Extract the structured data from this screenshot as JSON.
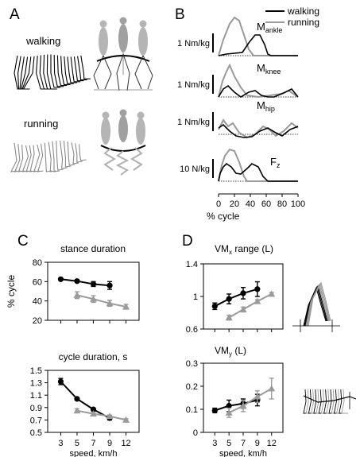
{
  "panel_letters": {
    "a": "A",
    "b": "B",
    "c": "C",
    "d": "D"
  },
  "panel_a": {
    "walking_label": "walking",
    "running_label": "running"
  },
  "panel_b": {
    "legend": {
      "walking": "walking",
      "running": "running"
    },
    "xlabel": "% cycle",
    "xticks": [
      "0",
      "20",
      "40",
      "60",
      "80",
      "100"
    ],
    "rows": [
      {
        "scale": "1 Nm/kg",
        "label_main": "M",
        "label_sub": "ankle"
      },
      {
        "scale": "1 Nm/kg",
        "label_main": "M",
        "label_sub": "knee"
      },
      {
        "scale": "1 Nm/kg",
        "label_main": "M",
        "label_sub": "hip"
      },
      {
        "scale": "10 N/kg",
        "label_main": "F",
        "label_sub": "z"
      }
    ]
  },
  "panel_c_d": {
    "xticks": [
      "3",
      "5",
      "7",
      "9",
      "12"
    ],
    "xlabel": "speed, km/h"
  },
  "colors": {
    "walking": "#000000",
    "running": "#9a9a9a"
  },
  "chart_data": [
    {
      "type": "line",
      "title": "stance duration",
      "ylabel": "% cycle",
      "xlabel": "speed, km/h",
      "x": [
        3,
        5,
        7,
        9,
        12
      ],
      "ylim": [
        20,
        80
      ],
      "yticks": [
        "20",
        "40",
        "60",
        "80"
      ],
      "series": [
        {
          "name": "walking",
          "x": [
            3,
            5,
            7,
            9
          ],
          "y": [
            62.5,
            60.5,
            57.5,
            56
          ],
          "err": [
            1,
            1,
            2.5,
            4
          ]
        },
        {
          "name": "running",
          "x": [
            5,
            7,
            9,
            12
          ],
          "y": [
            46,
            42,
            37.5,
            34
          ],
          "err": [
            3.5,
            3.5,
            3,
            2.5
          ]
        }
      ]
    },
    {
      "type": "line",
      "title": "cycle duration, s",
      "xlabel": "speed, km/h",
      "x": [
        3,
        5,
        7,
        9,
        12
      ],
      "ylim": [
        0.5,
        1.5
      ],
      "yticks": [
        "0.5",
        "0.7",
        "0.9",
        "1.1",
        "1.3",
        "1.5"
      ],
      "series": [
        {
          "name": "walking",
          "x": [
            3,
            5,
            7,
            9
          ],
          "y": [
            1.32,
            1.04,
            0.87,
            0.73
          ],
          "err": [
            0.05,
            0.02,
            0.02,
            0.03
          ]
        },
        {
          "name": "running",
          "x": [
            5,
            7,
            9,
            12
          ],
          "y": [
            0.85,
            0.8,
            0.76,
            0.7
          ],
          "err": [
            0.03,
            0.02,
            0.02,
            0.02
          ]
        }
      ]
    },
    {
      "type": "line",
      "title": "VM range (L)",
      "title_main": "VM",
      "title_sub": "x",
      "title_rest": " range (L)",
      "xlabel": "speed, km/h",
      "x": [
        3,
        5,
        7,
        9,
        12
      ],
      "ylim": [
        0.6,
        1.4
      ],
      "yticks": [
        "0.6",
        "1",
        "1.4"
      ],
      "series": [
        {
          "name": "walking",
          "x": [
            3,
            5,
            7,
            9
          ],
          "y": [
            0.88,
            0.97,
            1.04,
            1.09
          ],
          "err": [
            0.04,
            0.06,
            0.07,
            0.09
          ]
        },
        {
          "name": "running",
          "x": [
            5,
            7,
            9,
            12
          ],
          "y": [
            0.74,
            0.84,
            0.94,
            1.03
          ],
          "err": [
            0.03,
            0.03,
            0.02,
            0.02
          ]
        }
      ]
    },
    {
      "type": "line",
      "title": "VM (L)",
      "title_main": "VM",
      "title_sub": "y",
      "title_rest": " (L)",
      "xlabel": "speed, km/h",
      "x": [
        3,
        5,
        7,
        9,
        12
      ],
      "ylim": [
        0,
        0.3
      ],
      "yticks": [
        "0",
        "0.1",
        "0.2",
        "0.3"
      ],
      "series": [
        {
          "name": "walking",
          "x": [
            3,
            5,
            7,
            9
          ],
          "y": [
            0.095,
            0.115,
            0.125,
            0.14
          ],
          "err": [
            0.01,
            0.025,
            0.02,
            0.025
          ]
        },
        {
          "name": "running",
          "x": [
            5,
            7,
            9,
            12
          ],
          "y": [
            0.085,
            0.115,
            0.155,
            0.19
          ],
          "err": [
            0.02,
            0.025,
            0.025,
            0.045
          ]
        }
      ]
    }
  ]
}
